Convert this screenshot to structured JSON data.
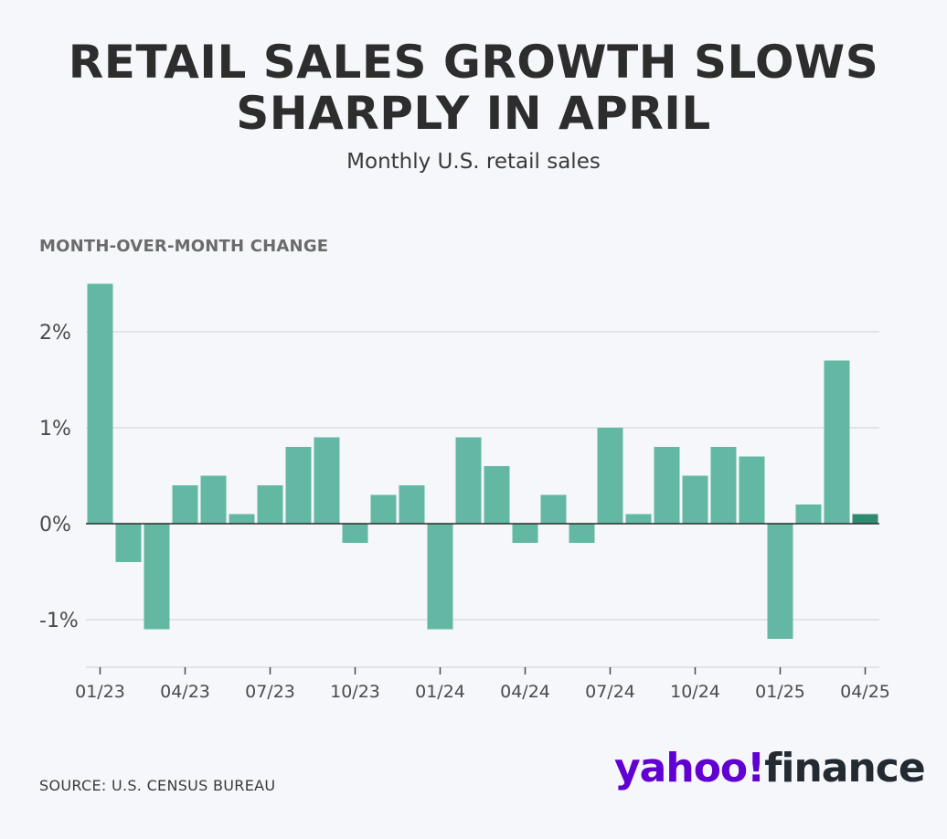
{
  "header": {
    "title_line1": "RETAIL SALES GROWTH SLOWS",
    "title_line2": "SHARPLY IN APRIL",
    "subtitle": "Monthly U.S. retail sales"
  },
  "footer": {
    "source": "SOURCE: U.S. CENSUS BUREAU",
    "logo_text_part1": "yahoo!",
    "logo_text_part2": "finance"
  },
  "colors": {
    "bar": "#63b8a3",
    "highlight_bar": "#2f8a72",
    "grid": "#dcdde2",
    "axis": "#2b2b2b",
    "brand_purple": "#6001d2"
  },
  "chart_data": {
    "type": "bar",
    "ylabel": "MONTH-OVER-MONTH CHANGE",
    "unit": "%",
    "ylim": [
      -1.5,
      2.5
    ],
    "yticks": [
      -1,
      0,
      1,
      2
    ],
    "ytick_labels": [
      "-1%",
      "0%",
      "1%",
      "2%"
    ],
    "grid": true,
    "categories": [
      "01/23",
      "02/23",
      "03/23",
      "04/23",
      "05/23",
      "06/23",
      "07/23",
      "08/23",
      "09/23",
      "10/23",
      "11/23",
      "12/23",
      "01/24",
      "02/24",
      "03/24",
      "04/24",
      "05/24",
      "06/24",
      "07/24",
      "08/24",
      "09/24",
      "10/24",
      "11/24",
      "12/24",
      "01/25",
      "02/25",
      "03/25",
      "04/25"
    ],
    "values": [
      2.5,
      -0.4,
      -1.1,
      0.4,
      0.5,
      0.1,
      0.4,
      0.8,
      0.9,
      -0.2,
      0.3,
      0.4,
      -1.1,
      0.9,
      0.6,
      -0.2,
      0.3,
      -0.2,
      1.0,
      0.1,
      0.8,
      0.5,
      0.8,
      0.7,
      -1.2,
      0.2,
      1.7,
      0.1
    ],
    "highlight_index": 27,
    "xtick_labels": [
      "01/23",
      "04/23",
      "07/23",
      "10/23",
      "01/24",
      "04/24",
      "07/24",
      "10/24",
      "01/25",
      "04/25"
    ],
    "xtick_indices": [
      0,
      3,
      6,
      9,
      12,
      15,
      18,
      21,
      24,
      27
    ]
  }
}
